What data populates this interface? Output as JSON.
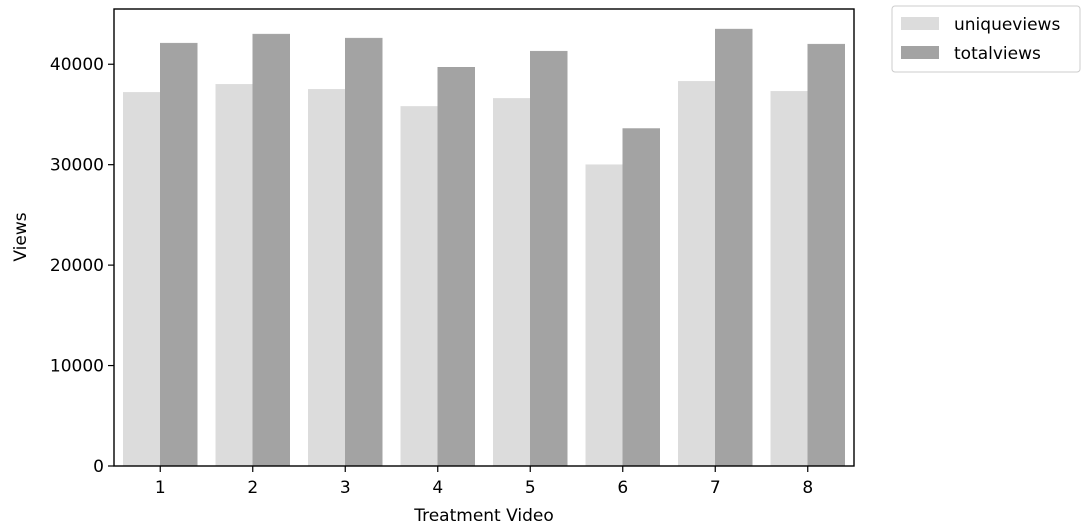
{
  "chart_data": {
    "type": "bar",
    "title": "",
    "xlabel": "Treatment Video",
    "ylabel": "Views",
    "categories": [
      "1",
      "2",
      "3",
      "4",
      "5",
      "6",
      "7",
      "8"
    ],
    "series": [
      {
        "name": "uniqueviews",
        "color": "#dcdcdc",
        "values": [
          37200,
          38000,
          37500,
          35800,
          36600,
          30000,
          38300,
          37300
        ]
      },
      {
        "name": "totalviews",
        "color": "#a3a3a3",
        "values": [
          42100,
          43000,
          42600,
          39700,
          41300,
          33600,
          43500,
          42000
        ]
      }
    ],
    "ylim": [
      0,
      45500
    ],
    "yticks": [
      0,
      10000,
      20000,
      30000,
      40000
    ],
    "ytick_labels": [
      "0",
      "10000",
      "20000",
      "30000",
      "40000"
    ],
    "grid": false,
    "legend": {
      "placement": "outside-top-right",
      "entries": [
        "uniqueviews",
        "totalviews"
      ]
    }
  }
}
